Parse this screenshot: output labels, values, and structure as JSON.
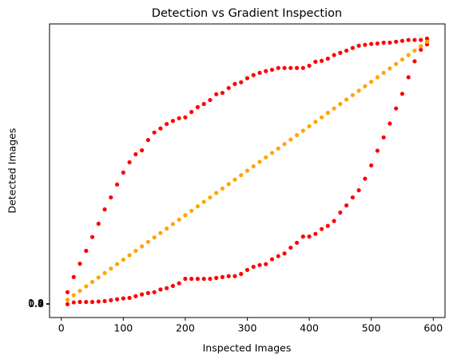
{
  "chart_data": {
    "type": "scatter",
    "title": "Detection vs Gradient Inspection",
    "xlabel": "Inspected Images",
    "ylabel": "Detected Images",
    "x": [
      10,
      20,
      30,
      40,
      50,
      60,
      70,
      80,
      90,
      100,
      110,
      120,
      130,
      140,
      150,
      160,
      170,
      180,
      190,
      200,
      210,
      220,
      230,
      240,
      250,
      260,
      270,
      280,
      290,
      300,
      310,
      320,
      330,
      340,
      350,
      360,
      370,
      380,
      390,
      400,
      410,
      420,
      430,
      440,
      450,
      460,
      470,
      480,
      490,
      500,
      510,
      520,
      530,
      540,
      550,
      560,
      570,
      580,
      590
    ],
    "series": [
      {
        "color": "#ff0000",
        "values": [
          27,
          61,
          91,
          120,
          151,
          181,
          213,
          240,
          269,
          296,
          319,
          337,
          346,
          369,
          386,
          395,
          405,
          412,
          418,
          420,
          432,
          443,
          450,
          459,
          472,
          475,
          486,
          495,
          499,
          508,
          515,
          520,
          524,
          527,
          531,
          531,
          531,
          531,
          531,
          536,
          545,
          547,
          552,
          560,
          565,
          570,
          576,
          581,
          583,
          585,
          586,
          588,
          588,
          590,
          592,
          594,
          594,
          594,
          597
        ]
      },
      {
        "color": "#ff0000",
        "values": [
          0,
          4,
          5,
          5,
          5,
          6,
          7,
          9,
          11,
          13,
          14,
          18,
          22,
          25,
          27,
          33,
          36,
          41,
          47,
          57,
          57,
          57,
          57,
          57,
          59,
          61,
          63,
          63,
          68,
          77,
          84,
          88,
          90,
          101,
          108,
          114,
          127,
          138,
          152,
          152,
          158,
          169,
          176,
          187,
          206,
          222,
          240,
          256,
          282,
          312,
          345,
          375,
          406,
          440,
          473,
          510,
          546,
          572,
          584
        ]
      },
      {
        "color": "#ffa500",
        "values": [
          10,
          20,
          30,
          40,
          50,
          60,
          70,
          80,
          90,
          100,
          110,
          120,
          130,
          140,
          150,
          160,
          170,
          180,
          190,
          200,
          210,
          220,
          230,
          240,
          250,
          260,
          270,
          280,
          290,
          300,
          310,
          320,
          330,
          340,
          350,
          360,
          370,
          380,
          390,
          400,
          410,
          420,
          430,
          440,
          450,
          460,
          470,
          480,
          490,
          500,
          510,
          520,
          530,
          540,
          550,
          560,
          570,
          580,
          590
        ]
      }
    ],
    "xlim": [
      -19,
      619
    ],
    "xticks": [
      0,
      100,
      200,
      300,
      400,
      500,
      600
    ],
    "ylim": [
      -30,
      630
    ],
    "yticks": [
      {
        "value": 0,
        "label": "0.0"
      },
      0.2,
      0.4,
      0.6,
      0.8,
      {
        "value": 1,
        "label": "1.0"
      }
    ]
  }
}
